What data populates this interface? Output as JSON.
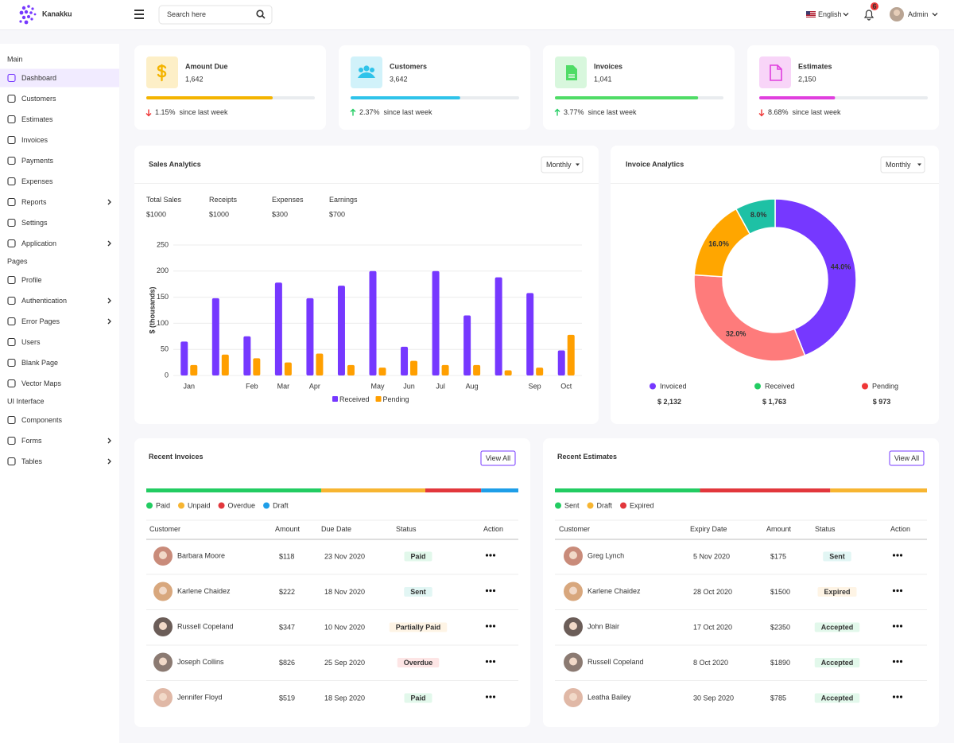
{
  "header": {
    "brand": "Kanakku",
    "search_placeholder": "Search here",
    "language": "English",
    "notification_count": "6",
    "user": "Admin"
  },
  "sidebar": {
    "sections": [
      {
        "title": "Main",
        "items": [
          {
            "label": "Dashboard",
            "active": true
          },
          {
            "label": "Customers"
          },
          {
            "label": "Estimates"
          },
          {
            "label": "Invoices"
          },
          {
            "label": "Payments"
          },
          {
            "label": "Expenses"
          },
          {
            "label": "Reports",
            "submenu": true
          },
          {
            "label": "Settings"
          },
          {
            "label": "Application",
            "submenu": true
          }
        ]
      },
      {
        "title": "Pages",
        "items": [
          {
            "label": "Profile"
          },
          {
            "label": "Authentication",
            "submenu": true
          },
          {
            "label": "Error Pages",
            "submenu": true
          },
          {
            "label": "Users"
          },
          {
            "label": "Blank Page"
          },
          {
            "label": "Vector Maps"
          }
        ]
      },
      {
        "title": "UI Interface",
        "items": [
          {
            "label": "Components"
          },
          {
            "label": "Forms",
            "submenu": true
          },
          {
            "label": "Tables",
            "submenu": true
          }
        ]
      }
    ]
  },
  "stats": {
    "progress_lim": [
      0,
      100
    ],
    "cards": [
      {
        "label": "Amount Due",
        "value": "1,642",
        "change": "1.15%",
        "note": "since last week",
        "trend": "down",
        "color": "#f4b400",
        "progress": 75
      },
      {
        "label": "Customers",
        "value": "3,642",
        "change": "2.37%",
        "note": "since last week",
        "trend": "up",
        "color": "#2fc3ea",
        "progress": 65
      },
      {
        "label": "Invoices",
        "value": "1,041",
        "change": "3.77%",
        "note": "since last week",
        "trend": "up",
        "color": "#4fdc66",
        "progress": 85
      },
      {
        "label": "Estimates",
        "value": "2,150",
        "change": "8.68%",
        "note": "since last week",
        "trend": "down",
        "color": "#e03fde",
        "progress": 45
      }
    ]
  },
  "chart_data": [
    {
      "type": "bar",
      "title": "Sales Analytics",
      "dropdown": "Monthly",
      "summary": [
        {
          "label": "Total Sales",
          "value": "$1000",
          "color": "#7638ff"
        },
        {
          "label": "Receipts",
          "value": "$1000",
          "color": "#22cc62"
        },
        {
          "label": "Expenses",
          "value": "$300",
          "color": "#ef3737"
        },
        {
          "label": "Earnings",
          "value": "$700",
          "color": "#111111"
        }
      ],
      "ylabel": "$ (thousands)",
      "categories": [
        "Jan",
        null,
        "Feb",
        "Mar",
        "Apr",
        null,
        "May",
        "Jun",
        "Jul",
        "Aug",
        null,
        "Sep",
        "Oct"
      ],
      "series": [
        {
          "name": "Received",
          "color": "#7638ff",
          "values": [
            65,
            148,
            75,
            178,
            148,
            172,
            200,
            55,
            200,
            115,
            188,
            158,
            48
          ]
        },
        {
          "name": "Pending",
          "color": "#ff9f00",
          "values": [
            20,
            40,
            33,
            25,
            42,
            20,
            15,
            28,
            20,
            20,
            10,
            15,
            78
          ]
        }
      ],
      "ylim": [
        0,
        250
      ],
      "yticks": [
        0,
        50,
        100,
        150,
        200,
        250
      ],
      "grid": true,
      "legend": "bottom"
    },
    {
      "type": "pie",
      "title": "Invoice Analytics",
      "dropdown": "Monthly",
      "values": [
        44,
        32,
        16,
        8
      ],
      "value_labels": [
        "44.0%",
        "32.0%",
        "16.0%",
        "8.0%"
      ],
      "colors": [
        "#7638ff",
        "#fe7b7b",
        "#ffa600",
        "#1ec1a5"
      ],
      "legend_items": [
        {
          "name": "Invoiced",
          "color": "#7638ff",
          "amount": "$ 2,132"
        },
        {
          "name": "Received",
          "color": "#22cc62",
          "amount": "$ 1,763"
        },
        {
          "name": "Pending",
          "color": "#ef3737",
          "amount": "$ 973"
        }
      ]
    }
  ],
  "invoices": {
    "title": "Recent Invoices",
    "button": "View All",
    "status_bar": [
      {
        "name": "Paid",
        "color": "#22cc62",
        "share": 47
      },
      {
        "name": "Unpaid",
        "color": "#f7b531",
        "share": 28
      },
      {
        "name": "Overdue",
        "color": "#e2373c",
        "share": 15
      },
      {
        "name": "Draft",
        "color": "#1e9ee8",
        "share": 10
      }
    ],
    "columns": [
      "Customer",
      "Amount",
      "Due Date",
      "Status",
      "Action"
    ],
    "rows": [
      [
        "Barbara Moore",
        "$118",
        "23 Nov 2020",
        "Paid"
      ],
      [
        "Karlene Chaidez",
        "$222",
        "18 Nov 2020",
        "Sent"
      ],
      [
        "Russell Copeland",
        "$347",
        "10 Nov 2020",
        "Partially Paid"
      ],
      [
        "Joseph Collins",
        "$826",
        "25 Sep 2020",
        "Overdue"
      ],
      [
        "Jennifer Floyd",
        "$519",
        "18 Sep 2020",
        "Paid"
      ]
    ],
    "status_colors": [
      "#22cc62",
      "#1db9aa",
      "#f7a833",
      "#ef3737",
      "#22cc62"
    ]
  },
  "estimates": {
    "title": "Recent Estimates",
    "button": "View All",
    "status_bar": [
      {
        "name": "Sent",
        "color": "#22cc62",
        "share": 39
      },
      {
        "name": "Draft",
        "color": "#f7b531",
        "share": 26
      },
      {
        "name": "Expired",
        "color": "#e2373c",
        "share": 35
      }
    ],
    "bar_order": [
      0,
      2,
      1
    ],
    "columns": [
      "Customer",
      "Expiry Date",
      "Amount",
      "Status",
      "Action"
    ],
    "rows": [
      [
        "Greg Lynch",
        "5 Nov 2020",
        "$175",
        "Sent"
      ],
      [
        "Karlene Chaidez",
        "28 Oct 2020",
        "$1500",
        "Expired"
      ],
      [
        "John Blair",
        "17 Oct 2020",
        "$2350",
        "Accepted"
      ],
      [
        "Russell Copeland",
        "8 Oct 2020",
        "$1890",
        "Accepted"
      ],
      [
        "Leatha Bailey",
        "30 Sep 2020",
        "$785",
        "Accepted"
      ]
    ],
    "status_colors": [
      "#1db9aa",
      "#f7a833",
      "#22cc62",
      "#22cc62",
      "#22cc62"
    ]
  }
}
